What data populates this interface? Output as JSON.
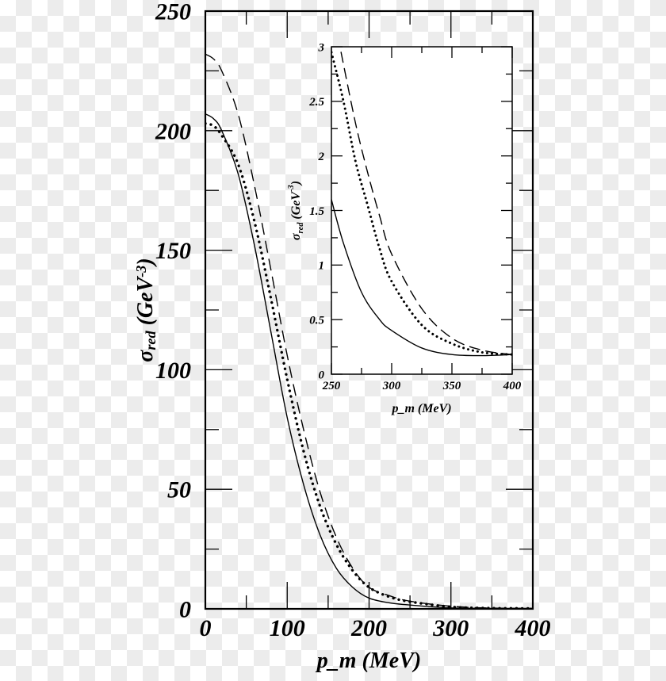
{
  "chart_data": [
    {
      "type": "line",
      "xlabel": "p_m (MeV)",
      "ylabel": "σ_red (GeV^-3)",
      "xlim": [
        0,
        400
      ],
      "ylim": [
        0,
        250
      ],
      "xticks": [
        "0",
        "100",
        "200",
        "300",
        "400"
      ],
      "yticks": [
        "0",
        "50",
        "100",
        "150",
        "200",
        "250"
      ],
      "grid": false,
      "series": [
        {
          "style": "solid",
          "x": [
            0,
            10,
            20,
            40,
            60,
            80,
            100,
            120,
            140,
            160,
            180,
            200,
            225,
            250,
            300,
            350,
            400
          ],
          "y": [
            207,
            205,
            200,
            182,
            152,
            116,
            80,
            52,
            31,
            17,
            9,
            4.5,
            2.5,
            1.6,
            0.4,
            0.2,
            0.2
          ]
        },
        {
          "style": "dotted",
          "x": [
            0,
            10,
            20,
            40,
            60,
            80,
            100,
            120,
            140,
            160,
            180,
            200,
            225,
            250,
            300,
            350,
            400
          ],
          "y": [
            203,
            202,
            198,
            186,
            162,
            130,
            96,
            66,
            43,
            27,
            16,
            9,
            5,
            3,
            0.85,
            0.28,
            0.2
          ]
        },
        {
          "style": "dashed",
          "x": [
            0,
            10,
            20,
            40,
            60,
            80,
            100,
            120,
            140,
            160,
            180,
            200,
            225,
            250,
            300,
            350,
            400
          ],
          "y": [
            232,
            230,
            225,
            207,
            177,
            142,
            106,
            75,
            49,
            30,
            17,
            9,
            5.5,
            3.2,
            1.1,
            0.33,
            0.2
          ]
        }
      ]
    },
    {
      "type": "line",
      "inset": true,
      "xlabel": "p_m (MeV)",
      "ylabel": "σ_red (GeV^-3)",
      "xlim": [
        250,
        400
      ],
      "ylim": [
        0,
        3
      ],
      "xticks": [
        "250",
        "300",
        "350",
        "400"
      ],
      "yticks": [
        "0",
        "0.5",
        "1",
        "1.5",
        "2",
        "2.5",
        "3"
      ],
      "grid": false,
      "series": [
        {
          "style": "solid",
          "x": [
            250,
            260,
            275,
            290,
            300,
            325,
            350,
            375,
            400
          ],
          "y": [
            1.6,
            1.2,
            0.75,
            0.5,
            0.4,
            0.24,
            0.18,
            0.17,
            0.18
          ]
        },
        {
          "style": "dotted",
          "x": [
            250,
            260,
            270,
            280,
            290,
            300,
            325,
            350,
            375,
            400
          ],
          "y": [
            2.95,
            2.5,
            1.95,
            1.55,
            1.15,
            0.85,
            0.45,
            0.28,
            0.2,
            0.18
          ]
        },
        {
          "style": "dashed",
          "x": [
            258,
            270,
            280,
            290,
            300,
            325,
            350,
            375,
            400
          ],
          "y": [
            2.95,
            2.3,
            1.85,
            1.45,
            1.1,
            0.6,
            0.33,
            0.22,
            0.18
          ]
        }
      ]
    }
  ]
}
